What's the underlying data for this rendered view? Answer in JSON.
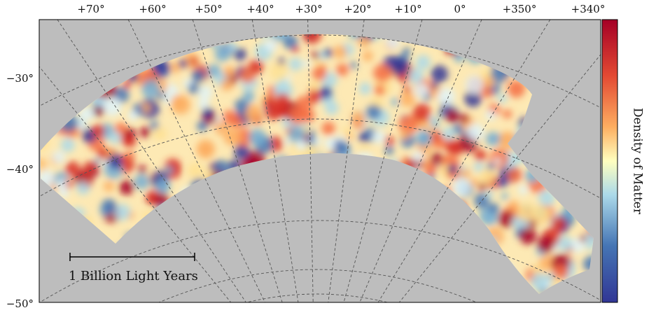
{
  "ra_labels": [
    "+70°",
    "+60°",
    "+50°",
    "+40°",
    "+30°",
    "+20°",
    "+10°",
    "0°",
    "+350°",
    "+340°"
  ],
  "dec_labels": [
    "−30°",
    "−40°",
    "−50°"
  ],
  "scale_bar": {
    "label": "1 Billion Light Years"
  },
  "colorbar": {
    "label": "Density of Matter"
  }
}
